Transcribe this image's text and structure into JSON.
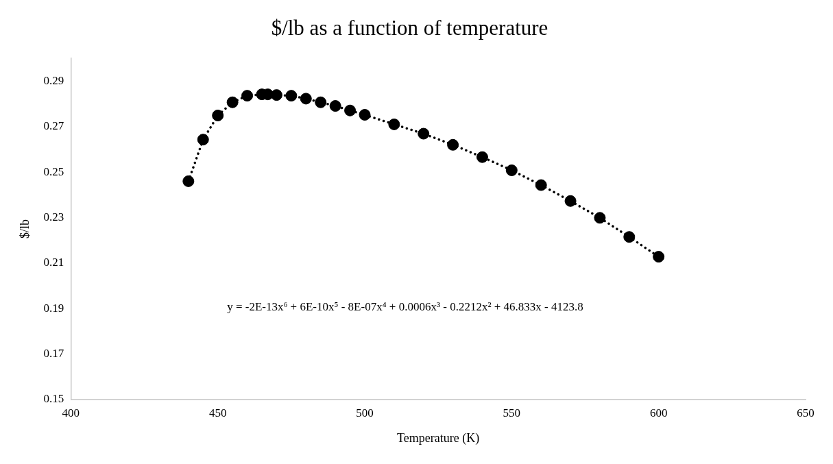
{
  "chart_data": {
    "type": "scatter",
    "title": "$/lb as a function of temperature",
    "xlabel": "Temperature (K)",
    "ylabel": "$/lb",
    "annotations": [
      "y = -2E-13x⁶ + 6E-10x⁵ - 8E-07x⁴ + 0.0006x³ - 0.2212x² + 46.833x - 4123.8"
    ],
    "series": [
      {
        "color": "#000000",
        "x": [
          440,
          445,
          450,
          455,
          460,
          465,
          467,
          470,
          475,
          480,
          485,
          490,
          495,
          500,
          510,
          520,
          530,
          540,
          550,
          560,
          570,
          580,
          590,
          600
        ],
        "values": [
          0.246,
          0.2643,
          0.2749,
          0.2807,
          0.2836,
          0.2842,
          0.2842,
          0.2839,
          0.2836,
          0.2823,
          0.2807,
          0.2791,
          0.2771,
          0.2752,
          0.271,
          0.2669,
          0.262,
          0.2566,
          0.2508,
          0.2443,
          0.2373,
          0.2299,
          0.2215,
          0.2128
        ]
      },
      {
        "type": "line",
        "color": "#000000",
        "line_style": "dotted",
        "marker": "none",
        "x": [
          440,
          445,
          450,
          455,
          460,
          465,
          467,
          470,
          475,
          480,
          485,
          490,
          495,
          500,
          510,
          520,
          530,
          540,
          550,
          560,
          570,
          580,
          590,
          600
        ],
        "values": [
          0.246,
          0.2643,
          0.2749,
          0.2807,
          0.2836,
          0.2842,
          0.2842,
          0.2839,
          0.2836,
          0.2823,
          0.2807,
          0.2791,
          0.2771,
          0.2752,
          0.271,
          0.2669,
          0.262,
          0.2566,
          0.2508,
          0.2443,
          0.2373,
          0.2299,
          0.2215,
          0.2128
        ]
      }
    ],
    "xlim": [
      400,
      650
    ],
    "xticks": [
      400,
      450,
      500,
      550,
      600,
      650
    ],
    "ylim": [
      0.15,
      0.3
    ],
    "yticks": [
      0.15,
      0.17,
      0.19,
      0.21,
      0.23,
      0.25,
      0.27,
      0.29
    ],
    "grid": false,
    "legend": false,
    "marker": "circle"
  }
}
